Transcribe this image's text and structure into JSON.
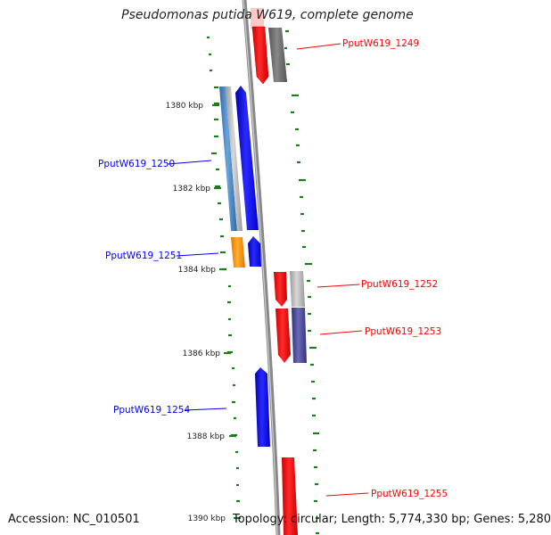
{
  "title": "Pseudomonas putida W619, complete genome",
  "accession_label": "Accession: NC_010501",
  "topology_label": "Topology: circular; Length: 5,774,330 bp; Genes: 5,280",
  "scale_labels": [
    "1380 kbp",
    "1382 kbp",
    "1384 kbp",
    "1386 kbp",
    "1388 kbp",
    "1390 kbp"
  ],
  "genes": [
    {
      "id": "PputW619_1249",
      "strand": "reverse"
    },
    {
      "id": "PputW619_1250",
      "strand": "forward"
    },
    {
      "id": "PputW619_1251",
      "strand": "forward"
    },
    {
      "id": "PputW619_1252",
      "strand": "reverse"
    },
    {
      "id": "PputW619_1253",
      "strand": "reverse"
    },
    {
      "id": "PputW619_1254",
      "strand": "forward"
    },
    {
      "id": "PputW619_1255",
      "strand": "reverse"
    }
  ],
  "colors": {
    "forward": "#0000ff",
    "reverse": "#ff0000",
    "gc_dash": "#1a7f1a",
    "backbone": "#888888",
    "cog_orange": "#ff9900",
    "cog_steel": "#4a88c4",
    "cog_gray": "#707070",
    "cog_light": "#b8b8b8",
    "cog_navy": "#4a4a9a",
    "faint_pink": "#ffc8c8"
  }
}
